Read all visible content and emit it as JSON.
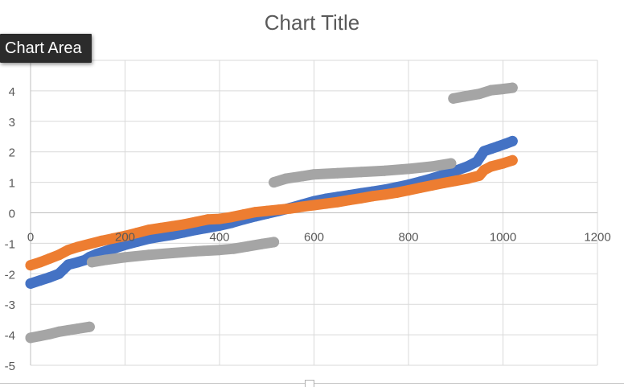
{
  "tooltip": {
    "label": "Chart Area"
  },
  "chart_data": {
    "type": "scatter",
    "title": "Chart Title",
    "xlabel": "",
    "ylabel": "",
    "xlim": [
      0,
      1200
    ],
    "ylim": [
      -5,
      5
    ],
    "x_ticks": [
      0,
      200,
      400,
      600,
      800,
      1000,
      1200
    ],
    "y_ticks": [
      -5,
      -4,
      -3,
      -2,
      -1,
      0,
      1,
      2,
      3,
      4
    ],
    "grid": true,
    "legend": "none",
    "series": [
      {
        "color": "#4472c4",
        "points": [
          [
            0,
            -2.32
          ],
          [
            20,
            -2.22
          ],
          [
            40,
            -2.12
          ],
          [
            60,
            -2.0
          ],
          [
            70,
            -1.85
          ],
          [
            80,
            -1.7
          ],
          [
            100,
            -1.62
          ],
          [
            115,
            -1.55
          ],
          [
            125,
            -1.45
          ],
          [
            140,
            -1.35
          ],
          [
            160,
            -1.25
          ],
          [
            180,
            -1.15
          ],
          [
            200,
            -1.05
          ],
          [
            225,
            -0.95
          ],
          [
            250,
            -0.85
          ],
          [
            275,
            -0.78
          ],
          [
            300,
            -0.72
          ],
          [
            325,
            -0.64
          ],
          [
            350,
            -0.56
          ],
          [
            375,
            -0.49
          ],
          [
            400,
            -0.42
          ],
          [
            425,
            -0.33
          ],
          [
            450,
            -0.22
          ],
          [
            475,
            -0.12
          ],
          [
            500,
            -0.03
          ],
          [
            525,
            0.06
          ],
          [
            550,
            0.16
          ],
          [
            575,
            0.27
          ],
          [
            600,
            0.38
          ],
          [
            625,
            0.46
          ],
          [
            650,
            0.52
          ],
          [
            675,
            0.58
          ],
          [
            700,
            0.64
          ],
          [
            725,
            0.7
          ],
          [
            750,
            0.76
          ],
          [
            775,
            0.84
          ],
          [
            800,
            0.92
          ],
          [
            825,
            1.02
          ],
          [
            850,
            1.13
          ],
          [
            875,
            1.25
          ],
          [
            900,
            1.38
          ],
          [
            925,
            1.52
          ],
          [
            945,
            1.68
          ],
          [
            960,
            2.02
          ],
          [
            975,
            2.1
          ],
          [
            990,
            2.18
          ],
          [
            1005,
            2.26
          ],
          [
            1020,
            2.35
          ]
        ]
      },
      {
        "color": "#ed7d31",
        "points": [
          [
            0,
            -1.72
          ],
          [
            20,
            -1.62
          ],
          [
            40,
            -1.5
          ],
          [
            60,
            -1.38
          ],
          [
            80,
            -1.22
          ],
          [
            100,
            -1.12
          ],
          [
            125,
            -1.02
          ],
          [
            150,
            -0.92
          ],
          [
            175,
            -0.84
          ],
          [
            200,
            -0.76
          ],
          [
            225,
            -0.66
          ],
          [
            250,
            -0.56
          ],
          [
            275,
            -0.5
          ],
          [
            300,
            -0.44
          ],
          [
            325,
            -0.38
          ],
          [
            350,
            -0.3
          ],
          [
            375,
            -0.22
          ],
          [
            400,
            -0.2
          ],
          [
            425,
            -0.14
          ],
          [
            450,
            -0.06
          ],
          [
            475,
            0.02
          ],
          [
            500,
            0.06
          ],
          [
            525,
            0.1
          ],
          [
            550,
            0.14
          ],
          [
            575,
            0.2
          ],
          [
            600,
            0.25
          ],
          [
            625,
            0.3
          ],
          [
            650,
            0.35
          ],
          [
            675,
            0.42
          ],
          [
            700,
            0.48
          ],
          [
            725,
            0.55
          ],
          [
            750,
            0.6
          ],
          [
            775,
            0.66
          ],
          [
            800,
            0.74
          ],
          [
            825,
            0.82
          ],
          [
            850,
            0.9
          ],
          [
            875,
            0.98
          ],
          [
            900,
            1.05
          ],
          [
            925,
            1.12
          ],
          [
            950,
            1.22
          ],
          [
            960,
            1.4
          ],
          [
            975,
            1.52
          ],
          [
            1000,
            1.62
          ],
          [
            1020,
            1.72
          ]
        ]
      },
      {
        "color": "#a5a5a5",
        "points": [
          [
            0,
            -4.1
          ],
          [
            20,
            -4.04
          ],
          [
            40,
            -3.98
          ],
          [
            60,
            -3.9
          ],
          [
            80,
            -3.85
          ],
          [
            100,
            -3.8
          ],
          [
            125,
            -3.74
          ],
          [
            null,
            null
          ],
          [
            130,
            -1.62
          ],
          [
            160,
            -1.54
          ],
          [
            200,
            -1.46
          ],
          [
            250,
            -1.38
          ],
          [
            300,
            -1.32
          ],
          [
            350,
            -1.26
          ],
          [
            400,
            -1.22
          ],
          [
            430,
            -1.18
          ],
          [
            460,
            -1.1
          ],
          [
            490,
            -1.02
          ],
          [
            515,
            -0.96
          ],
          [
            null,
            null
          ],
          [
            515,
            1.0
          ],
          [
            540,
            1.12
          ],
          [
            575,
            1.2
          ],
          [
            600,
            1.26
          ],
          [
            650,
            1.3
          ],
          [
            700,
            1.34
          ],
          [
            750,
            1.38
          ],
          [
            800,
            1.44
          ],
          [
            850,
            1.52
          ],
          [
            890,
            1.62
          ],
          [
            null,
            null
          ],
          [
            895,
            3.75
          ],
          [
            920,
            3.82
          ],
          [
            950,
            3.9
          ],
          [
            975,
            4.02
          ],
          [
            1000,
            4.06
          ],
          [
            1020,
            4.1
          ]
        ]
      }
    ]
  }
}
